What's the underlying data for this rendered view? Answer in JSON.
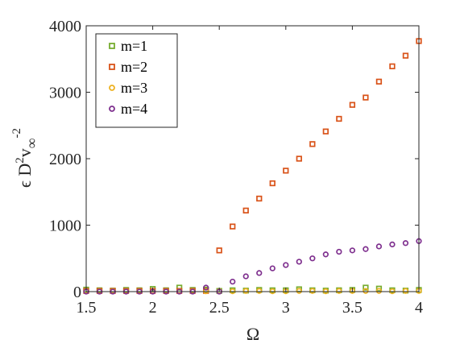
{
  "chart_data": {
    "type": "scatter",
    "xlabel": "Ω",
    "ylabel_parts": {
      "base": "ϵ D",
      "sup1": "2",
      "mid": "v",
      "sub": "∞",
      "sup2": "-2"
    },
    "xlim": [
      1.5,
      4
    ],
    "ylim": [
      0,
      4000
    ],
    "xticks": [
      "1.5",
      "2",
      "2.5",
      "3",
      "3.5",
      "4"
    ],
    "yticks": [
      "0",
      "1000",
      "2000",
      "3000",
      "4000"
    ],
    "grid": false,
    "legend_position": "top-left",
    "x": [
      1.5,
      1.6,
      1.7,
      1.8,
      1.9,
      2.0,
      2.1,
      2.2,
      2.3,
      2.4,
      2.5,
      2.6,
      2.7,
      2.8,
      2.9,
      3.0,
      3.1,
      3.2,
      3.3,
      3.4,
      3.5,
      3.6,
      3.7,
      3.8,
      3.9,
      4.0
    ],
    "series": [
      {
        "name": "m=1",
        "color": "#77ac30",
        "values": [
          30,
          20,
          15,
          25,
          20,
          40,
          20,
          60,
          25,
          30,
          10,
          20,
          15,
          25,
          20,
          20,
          35,
          20,
          15,
          20,
          25,
          60,
          45,
          20,
          15,
          25
        ]
      },
      {
        "name": "m=2",
        "color": "#d95319",
        "values": [
          10,
          10,
          10,
          10,
          10,
          10,
          10,
          10,
          10,
          10,
          620,
          980,
          1220,
          1400,
          1630,
          1820,
          2000,
          2220,
          2410,
          2600,
          2810,
          2920,
          3160,
          3390,
          3550,
          3770
        ]
      },
      {
        "name": "m=3",
        "color": "#edb120",
        "values": [
          5,
          5,
          5,
          5,
          5,
          5,
          5,
          5,
          5,
          5,
          5,
          5,
          10,
          10,
          5,
          5,
          10,
          10,
          5,
          10,
          10,
          10,
          10,
          5,
          10,
          10
        ]
      },
      {
        "name": "m=4",
        "color": "#7e2f8e",
        "values": [
          0,
          0,
          0,
          0,
          0,
          0,
          0,
          0,
          0,
          60,
          0,
          150,
          230,
          280,
          350,
          400,
          450,
          500,
          560,
          600,
          620,
          640,
          680,
          710,
          730,
          760
        ]
      }
    ]
  }
}
